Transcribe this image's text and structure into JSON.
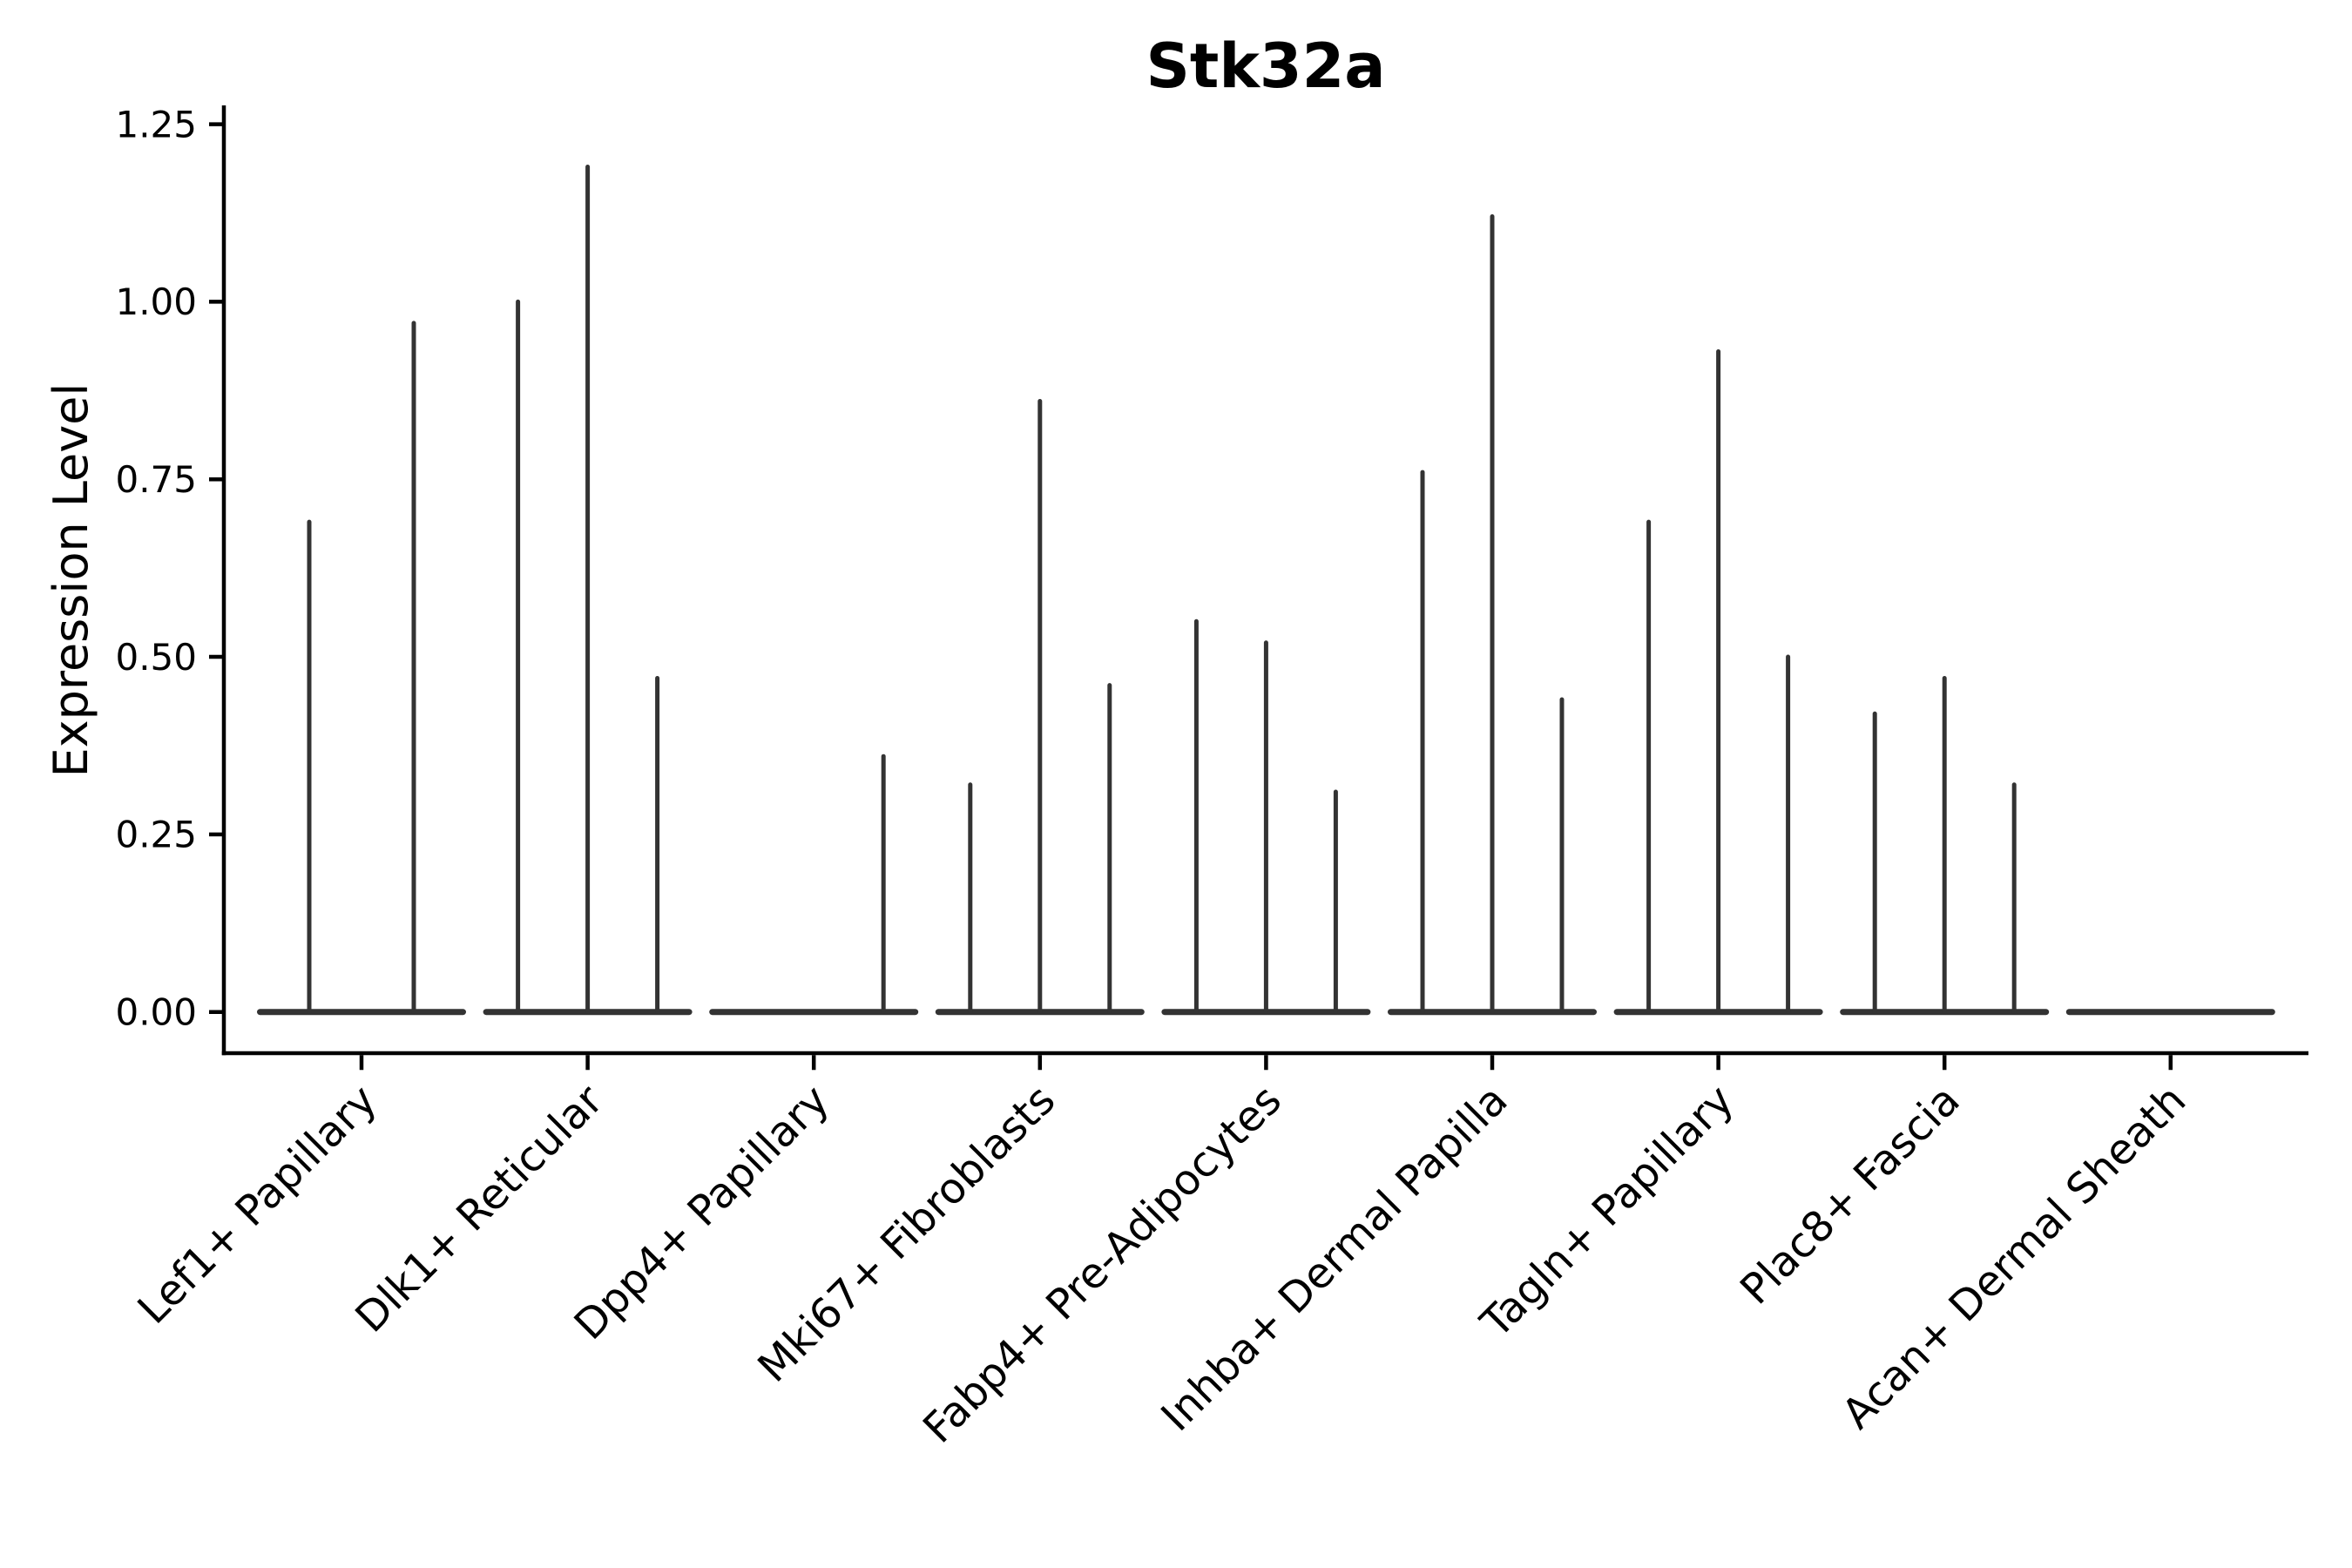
{
  "chart_data": {
    "type": "violin",
    "title": "Stk32a",
    "ylabel": "Expression Level",
    "xlabel": "",
    "yticks": [
      "1.25",
      "1.00",
      "0.75",
      "0.50",
      "0.25",
      "0.00"
    ],
    "ylim": [
      -0.058,
      1.274
    ],
    "grid": false,
    "legend": false,
    "x_tick_rotation_deg": 45,
    "baseline_value": 0.0,
    "groups": [
      {
        "label": "Lef1+ Papillary",
        "violins": [
          {
            "pos": 0.25,
            "peak": 0.69
          },
          {
            "pos": 0.75,
            "peak": 0.97
          }
        ]
      },
      {
        "label": "Dlk1+ Reticular",
        "violins": [
          {
            "pos": 0.1667,
            "peak": 1.0
          },
          {
            "pos": 0.5,
            "peak": 1.19
          },
          {
            "pos": 0.8333,
            "peak": 0.47
          }
        ]
      },
      {
        "label": "Dpp4+ Papillary",
        "violins": [
          {
            "pos": 0.8333,
            "peak": 0.36
          }
        ]
      },
      {
        "label": "Mki67+ Fibroblasts",
        "violins": [
          {
            "pos": 0.1667,
            "peak": 0.32
          },
          {
            "pos": 0.5,
            "peak": 0.86
          },
          {
            "pos": 0.8333,
            "peak": 0.46
          }
        ]
      },
      {
        "label": "Fabp4+ Pre-Adipocytes",
        "violins": [
          {
            "pos": 0.1667,
            "peak": 0.55
          },
          {
            "pos": 0.5,
            "peak": 0.52
          },
          {
            "pos": 0.8333,
            "peak": 0.31
          }
        ]
      },
      {
        "label": "Inhba+ Dermal Papilla",
        "violins": [
          {
            "pos": 0.1667,
            "peak": 0.76
          },
          {
            "pos": 0.5,
            "peak": 1.12
          },
          {
            "pos": 0.8333,
            "peak": 0.44
          }
        ]
      },
      {
        "label": "Tagln+ Papillary",
        "violins": [
          {
            "pos": 0.1667,
            "peak": 0.69
          },
          {
            "pos": 0.5,
            "peak": 0.93
          },
          {
            "pos": 0.8333,
            "peak": 0.5
          }
        ]
      },
      {
        "label": "Plac8+ Fascia",
        "violins": [
          {
            "pos": 0.1667,
            "peak": 0.42
          },
          {
            "pos": 0.5,
            "peak": 0.47
          },
          {
            "pos": 0.8333,
            "peak": 0.32
          }
        ]
      },
      {
        "label": "Acan+ Dermal Sheath",
        "violins": []
      }
    ],
    "colors": {
      "violin": "#333333",
      "axis": "#000000",
      "text": "#000000",
      "background": "#ffffff"
    }
  }
}
